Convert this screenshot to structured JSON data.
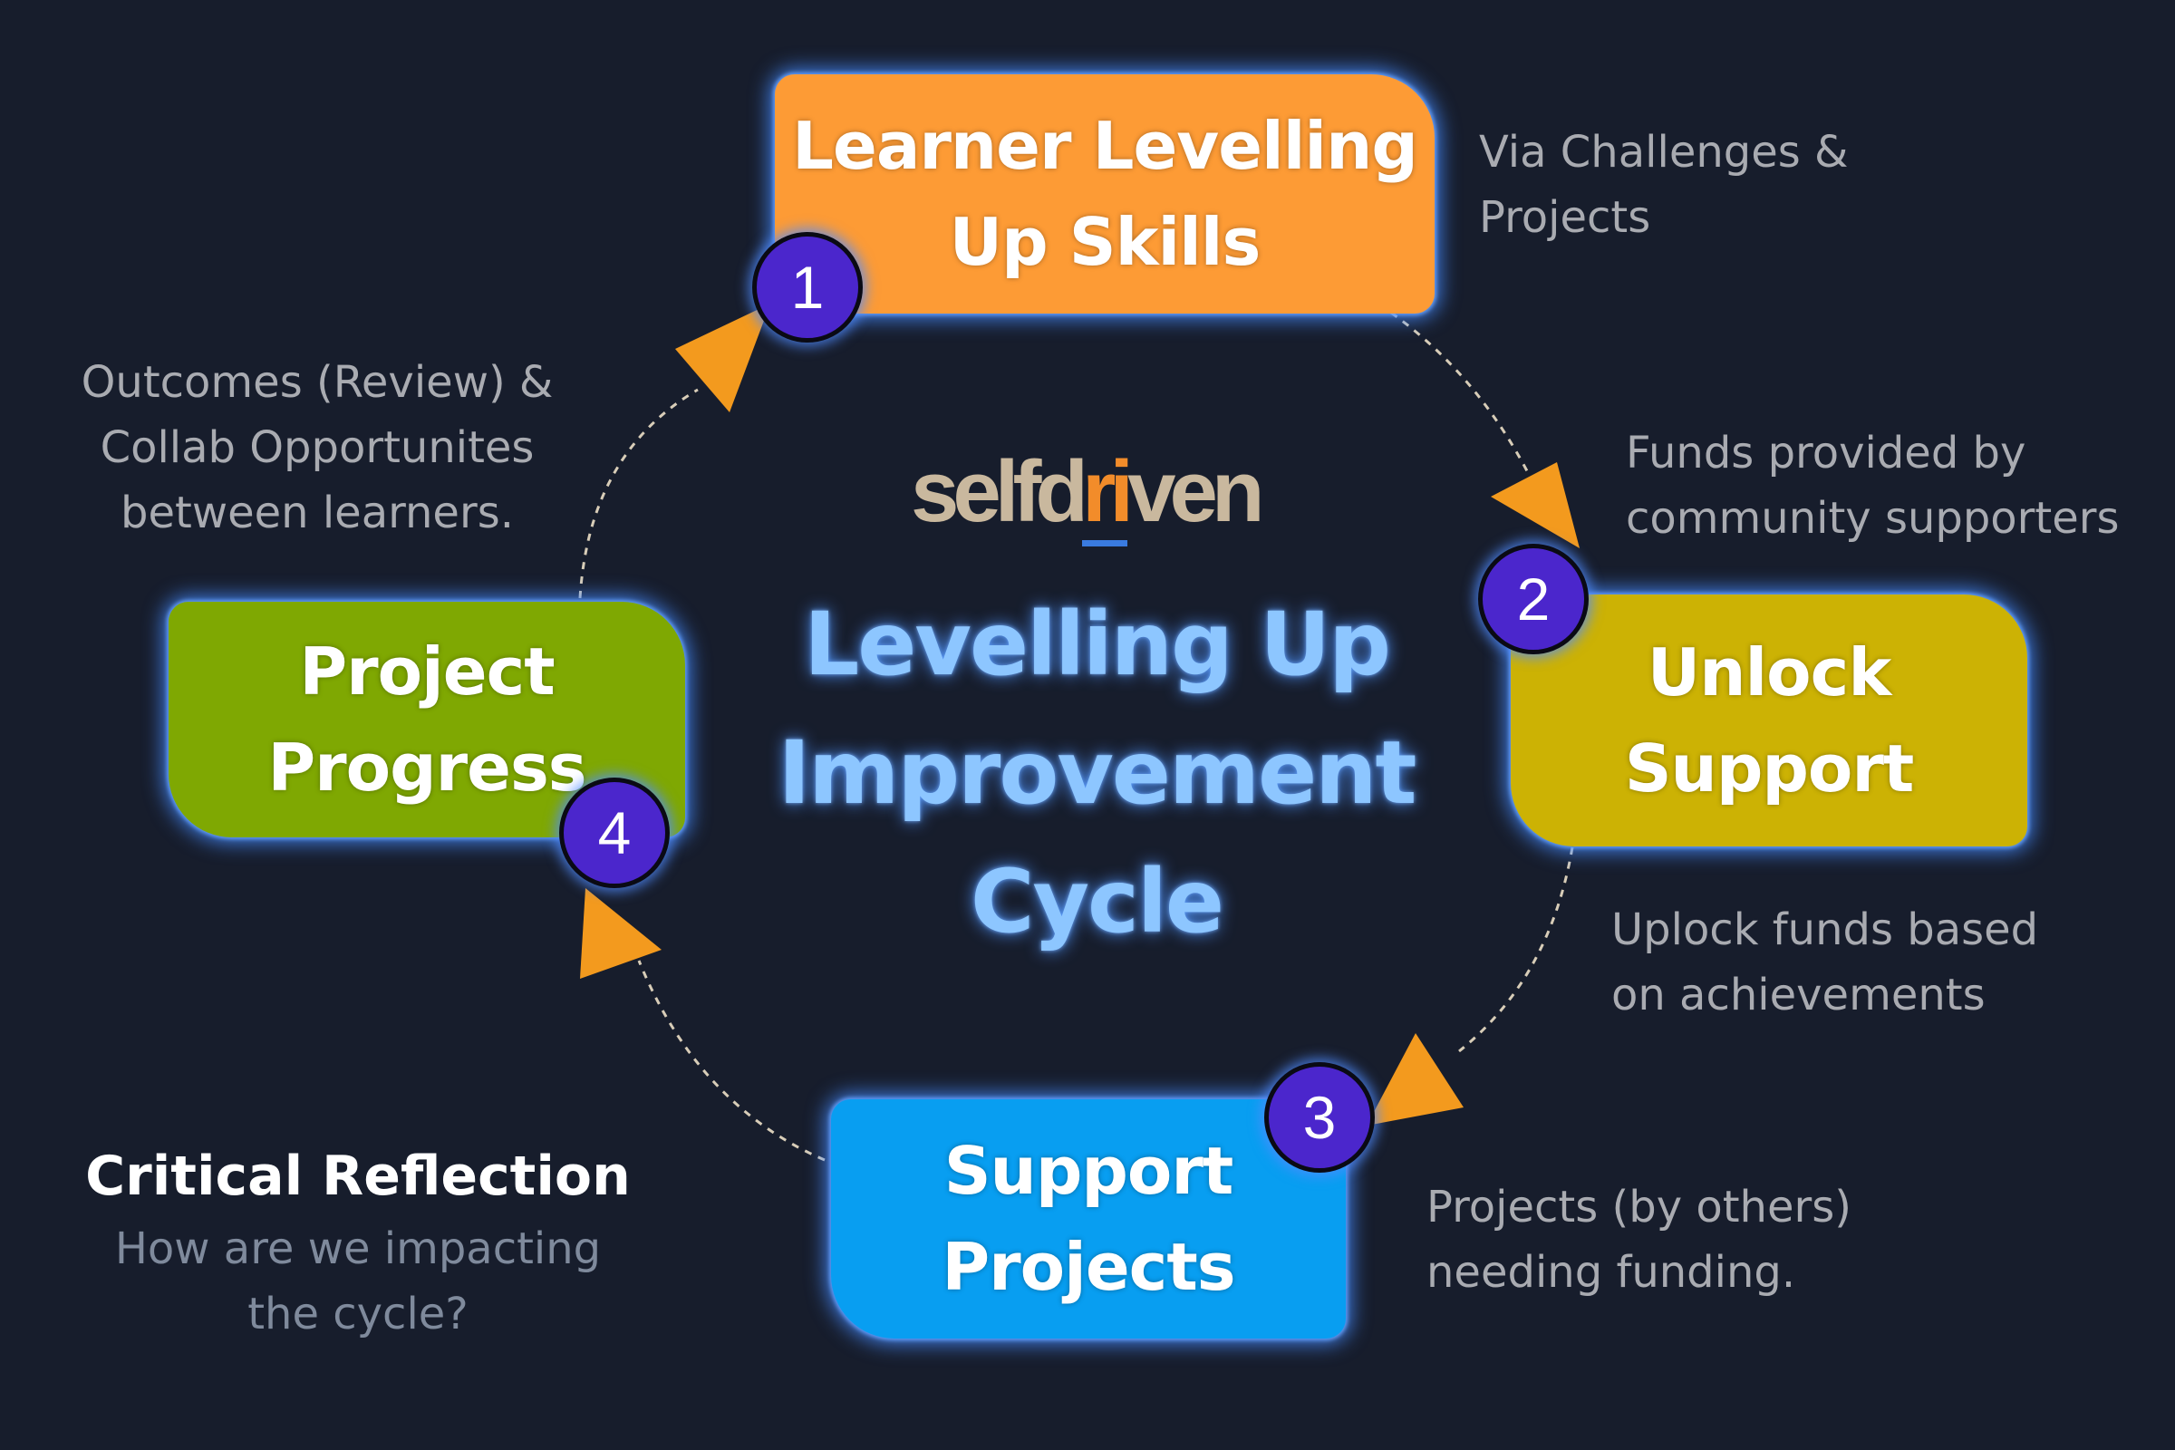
{
  "title": "Levelling Up Improvement Cycle",
  "logo": {
    "part1": "selfd",
    "part2": "ri",
    "part3": "ven"
  },
  "stages": [
    {
      "number": "1",
      "label": "Learner Levelling Up Skills",
      "note": "Via Challenges &\nProjects"
    },
    {
      "number": "2",
      "label": "Unlock Support",
      "note": "Funds provided by\ncommunity supporters",
      "note_after": "Uplock funds based\non achievements"
    },
    {
      "number": "3",
      "label": "Support Projects",
      "note": "Projects (by others)\nneeding funding."
    },
    {
      "number": "4",
      "label": "Project Progress",
      "note": "Outcomes (Review) &\nCollab Opportunites\nbetween learners."
    }
  ],
  "reflection": {
    "title": "Critical Reflection",
    "question": "How are we impacting\nthe cycle?"
  },
  "colors": {
    "background": "#171d2c",
    "stage1": "#fd9b35",
    "stage2": "#ccb204",
    "stage3": "#089ef1",
    "stage4": "#7fa802",
    "badge": "#4b26cc",
    "arrow": "#f39a1e",
    "title": "#8dc6ff"
  }
}
